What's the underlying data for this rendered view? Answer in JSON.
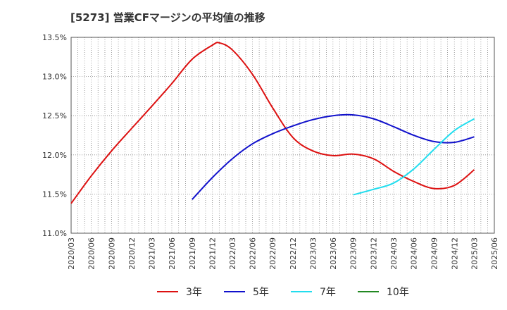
{
  "chart_data": {
    "type": "line",
    "title": "[5273]  営業CFマージンの平均値の推移",
    "ylim": [
      11.0,
      13.5
    ],
    "y_ticks": [
      "11.0%",
      "11.5%",
      "12.0%",
      "12.5%",
      "13.0%",
      "13.5%"
    ],
    "y_tick_values": [
      11.0,
      11.5,
      12.0,
      12.5,
      13.0,
      13.5
    ],
    "x_ticks": [
      "2020/03",
      "2020/06",
      "2020/09",
      "2020/12",
      "2021/03",
      "2021/06",
      "2021/09",
      "2021/12",
      "2022/03",
      "2022/06",
      "2022/09",
      "2022/12",
      "2023/03",
      "2023/06",
      "2023/09",
      "2023/12",
      "2024/03",
      "2024/06",
      "2024/09",
      "2024/12",
      "2025/03",
      "2025/06"
    ],
    "grid": true,
    "legend_position": "bottom",
    "series": [
      {
        "name": "3年",
        "color": "#dd1111",
        "x": [
          "2020/03",
          "2020/06",
          "2020/09",
          "2020/12",
          "2021/03",
          "2021/06",
          "2021/09",
          "2021/12",
          "2022/01",
          "2022/03",
          "2022/06",
          "2022/09",
          "2022/12",
          "2023/03",
          "2023/06",
          "2023/09",
          "2023/12",
          "2024/03",
          "2024/06",
          "2024/09",
          "2024/12",
          "2025/03"
        ],
        "values": [
          11.38,
          11.73,
          12.05,
          12.34,
          12.62,
          12.91,
          13.22,
          13.4,
          13.43,
          13.34,
          13.03,
          12.6,
          12.22,
          12.05,
          11.99,
          12.01,
          11.95,
          11.79,
          11.66,
          11.57,
          11.61,
          11.81
        ]
      },
      {
        "name": "5年",
        "color": "#1111cc",
        "x": [
          "2021/09",
          "2021/12",
          "2022/03",
          "2022/06",
          "2022/09",
          "2022/12",
          "2023/03",
          "2023/06",
          "2023/09",
          "2023/12",
          "2024/03",
          "2024/06",
          "2024/09",
          "2024/12",
          "2025/03"
        ],
        "values": [
          11.43,
          11.71,
          11.95,
          12.14,
          12.27,
          12.37,
          12.45,
          12.5,
          12.51,
          12.46,
          12.36,
          12.25,
          12.17,
          12.16,
          12.23
        ]
      },
      {
        "name": "7年",
        "color": "#22ddee",
        "x": [
          "2023/09",
          "2023/12",
          "2024/03",
          "2024/06",
          "2024/09",
          "2024/12",
          "2025/03"
        ],
        "values": [
          11.49,
          11.56,
          11.64,
          11.82,
          12.07,
          12.31,
          12.46
        ]
      },
      {
        "name": "10年",
        "color": "#228822",
        "x": [],
        "values": []
      }
    ]
  }
}
